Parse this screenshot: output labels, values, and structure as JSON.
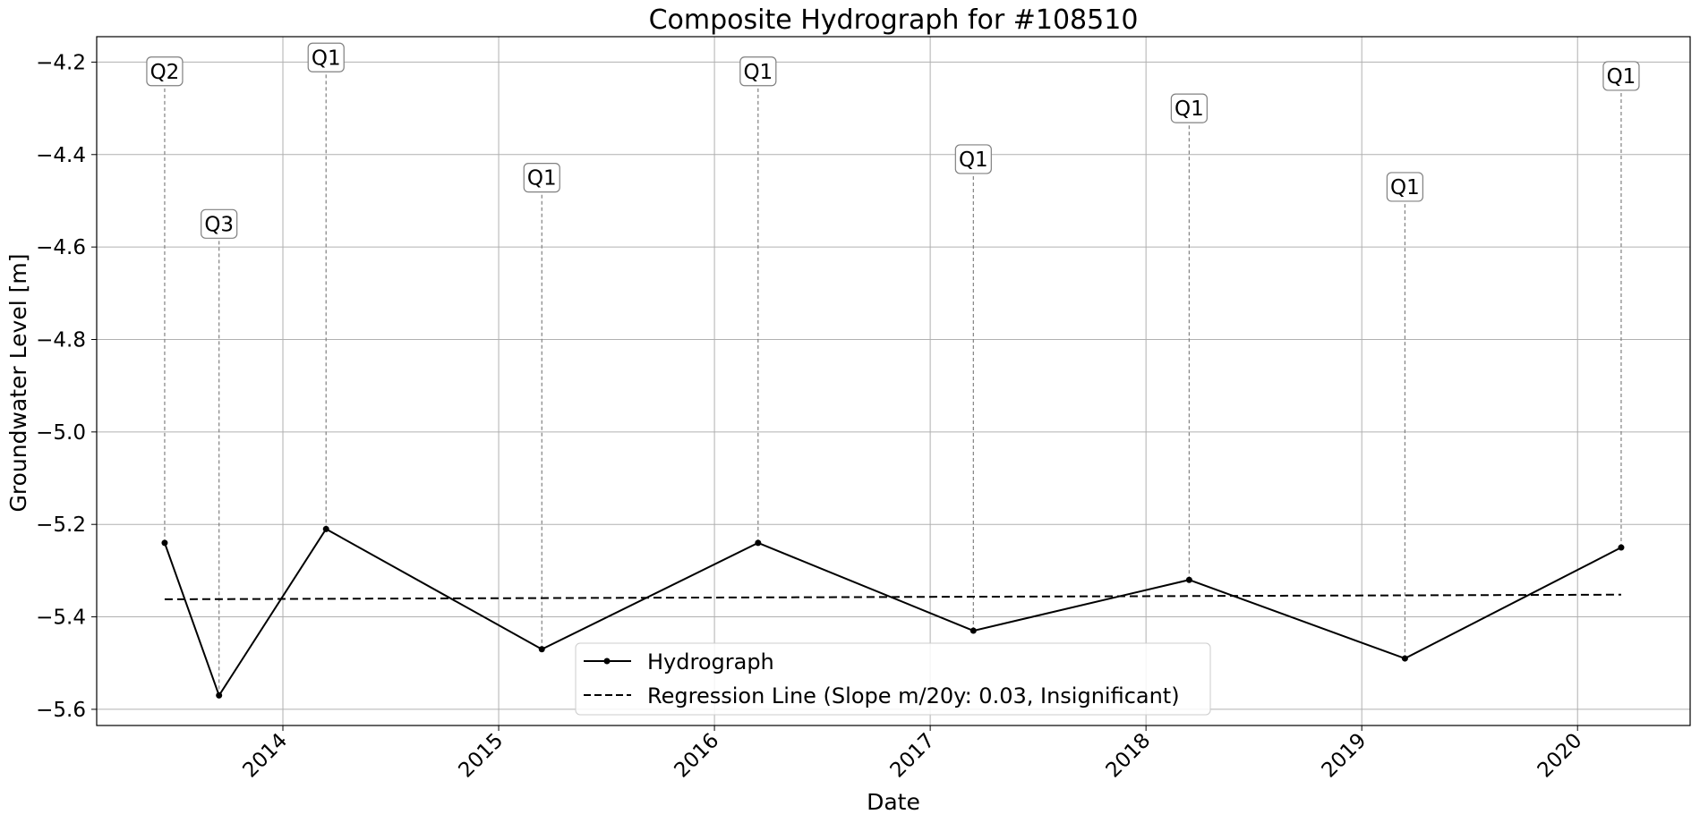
{
  "chart_data": {
    "type": "line",
    "title": "Composite Hydrograph for  #108510",
    "xlabel": "Date",
    "ylabel": "Groundwater Level [m]",
    "x_ticks": [
      "2014",
      "2015",
      "2016",
      "2017",
      "2018",
      "2019",
      "2020"
    ],
    "y_ticks": [
      "−4.2",
      "−4.4",
      "−4.6",
      "−4.8",
      "−5.0",
      "−5.2",
      "−5.4",
      "−5.6"
    ],
    "y_tick_values": [
      -4.2,
      -4.4,
      -4.6,
      -4.8,
      -5.0,
      -5.2,
      -5.4,
      -5.6
    ],
    "ylim": [
      -5.635,
      -4.145
    ],
    "xlim": [
      "2013-02-20",
      "2020-07-10"
    ],
    "grid": true,
    "legend_position": "lower center",
    "series": [
      {
        "name": "Hydrograph",
        "style": "solid-with-markers",
        "color": "#000000",
        "points": [
          {
            "x": "2013-06-15",
            "y": -5.24
          },
          {
            "x": "2013-09-15",
            "y": -5.57
          },
          {
            "x": "2014-03-15",
            "y": -5.21
          },
          {
            "x": "2015-03-15",
            "y": -5.47
          },
          {
            "x": "2016-03-15",
            "y": -5.24
          },
          {
            "x": "2017-03-15",
            "y": -5.43
          },
          {
            "x": "2018-03-15",
            "y": -5.32
          },
          {
            "x": "2019-03-15",
            "y": -5.49
          },
          {
            "x": "2020-03-15",
            "y": -5.25
          }
        ]
      },
      {
        "name": "Regression Line (Slope m/20y: 0.03, Insignificant)",
        "style": "dashed",
        "color": "#000000",
        "points": [
          {
            "x": "2013-06-15",
            "y": -5.362
          },
          {
            "x": "2020-03-15",
            "y": -5.352
          }
        ]
      }
    ],
    "annotations": [
      {
        "label": "Q2",
        "x": "2013-06-15",
        "y": -4.22
      },
      {
        "label": "Q3",
        "x": "2013-09-15",
        "y": -4.55
      },
      {
        "label": "Q1",
        "x": "2014-03-15",
        "y": -4.19
      },
      {
        "label": "Q1",
        "x": "2015-03-15",
        "y": -4.45
      },
      {
        "label": "Q1",
        "x": "2016-03-15",
        "y": -4.22
      },
      {
        "label": "Q1",
        "x": "2017-03-15",
        "y": -4.41
      },
      {
        "label": "Q1",
        "x": "2018-03-15",
        "y": -4.3
      },
      {
        "label": "Q1",
        "x": "2019-03-15",
        "y": -4.47
      },
      {
        "label": "Q1",
        "x": "2020-03-15",
        "y": -4.23
      }
    ],
    "colors": {
      "line": "#000000",
      "grid": "#b0b0b0",
      "annotation_stem": "#808080",
      "annotation_box_border": "#808080"
    }
  }
}
